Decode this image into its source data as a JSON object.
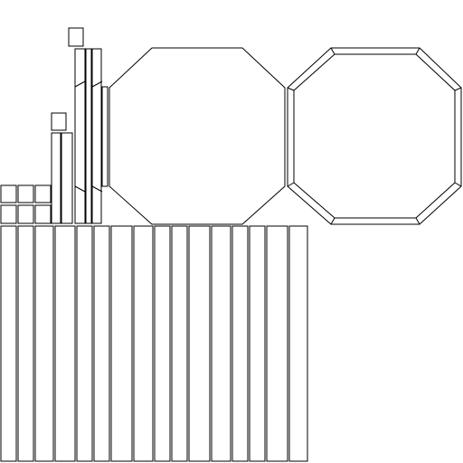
{
  "canvas": {
    "background": "#ffffff",
    "stroke_color": "#000000"
  },
  "parts": [
    "small-square",
    "tall-strip",
    "bent-strip",
    "octagon-panel",
    "octagon-frame",
    "long-strip"
  ]
}
